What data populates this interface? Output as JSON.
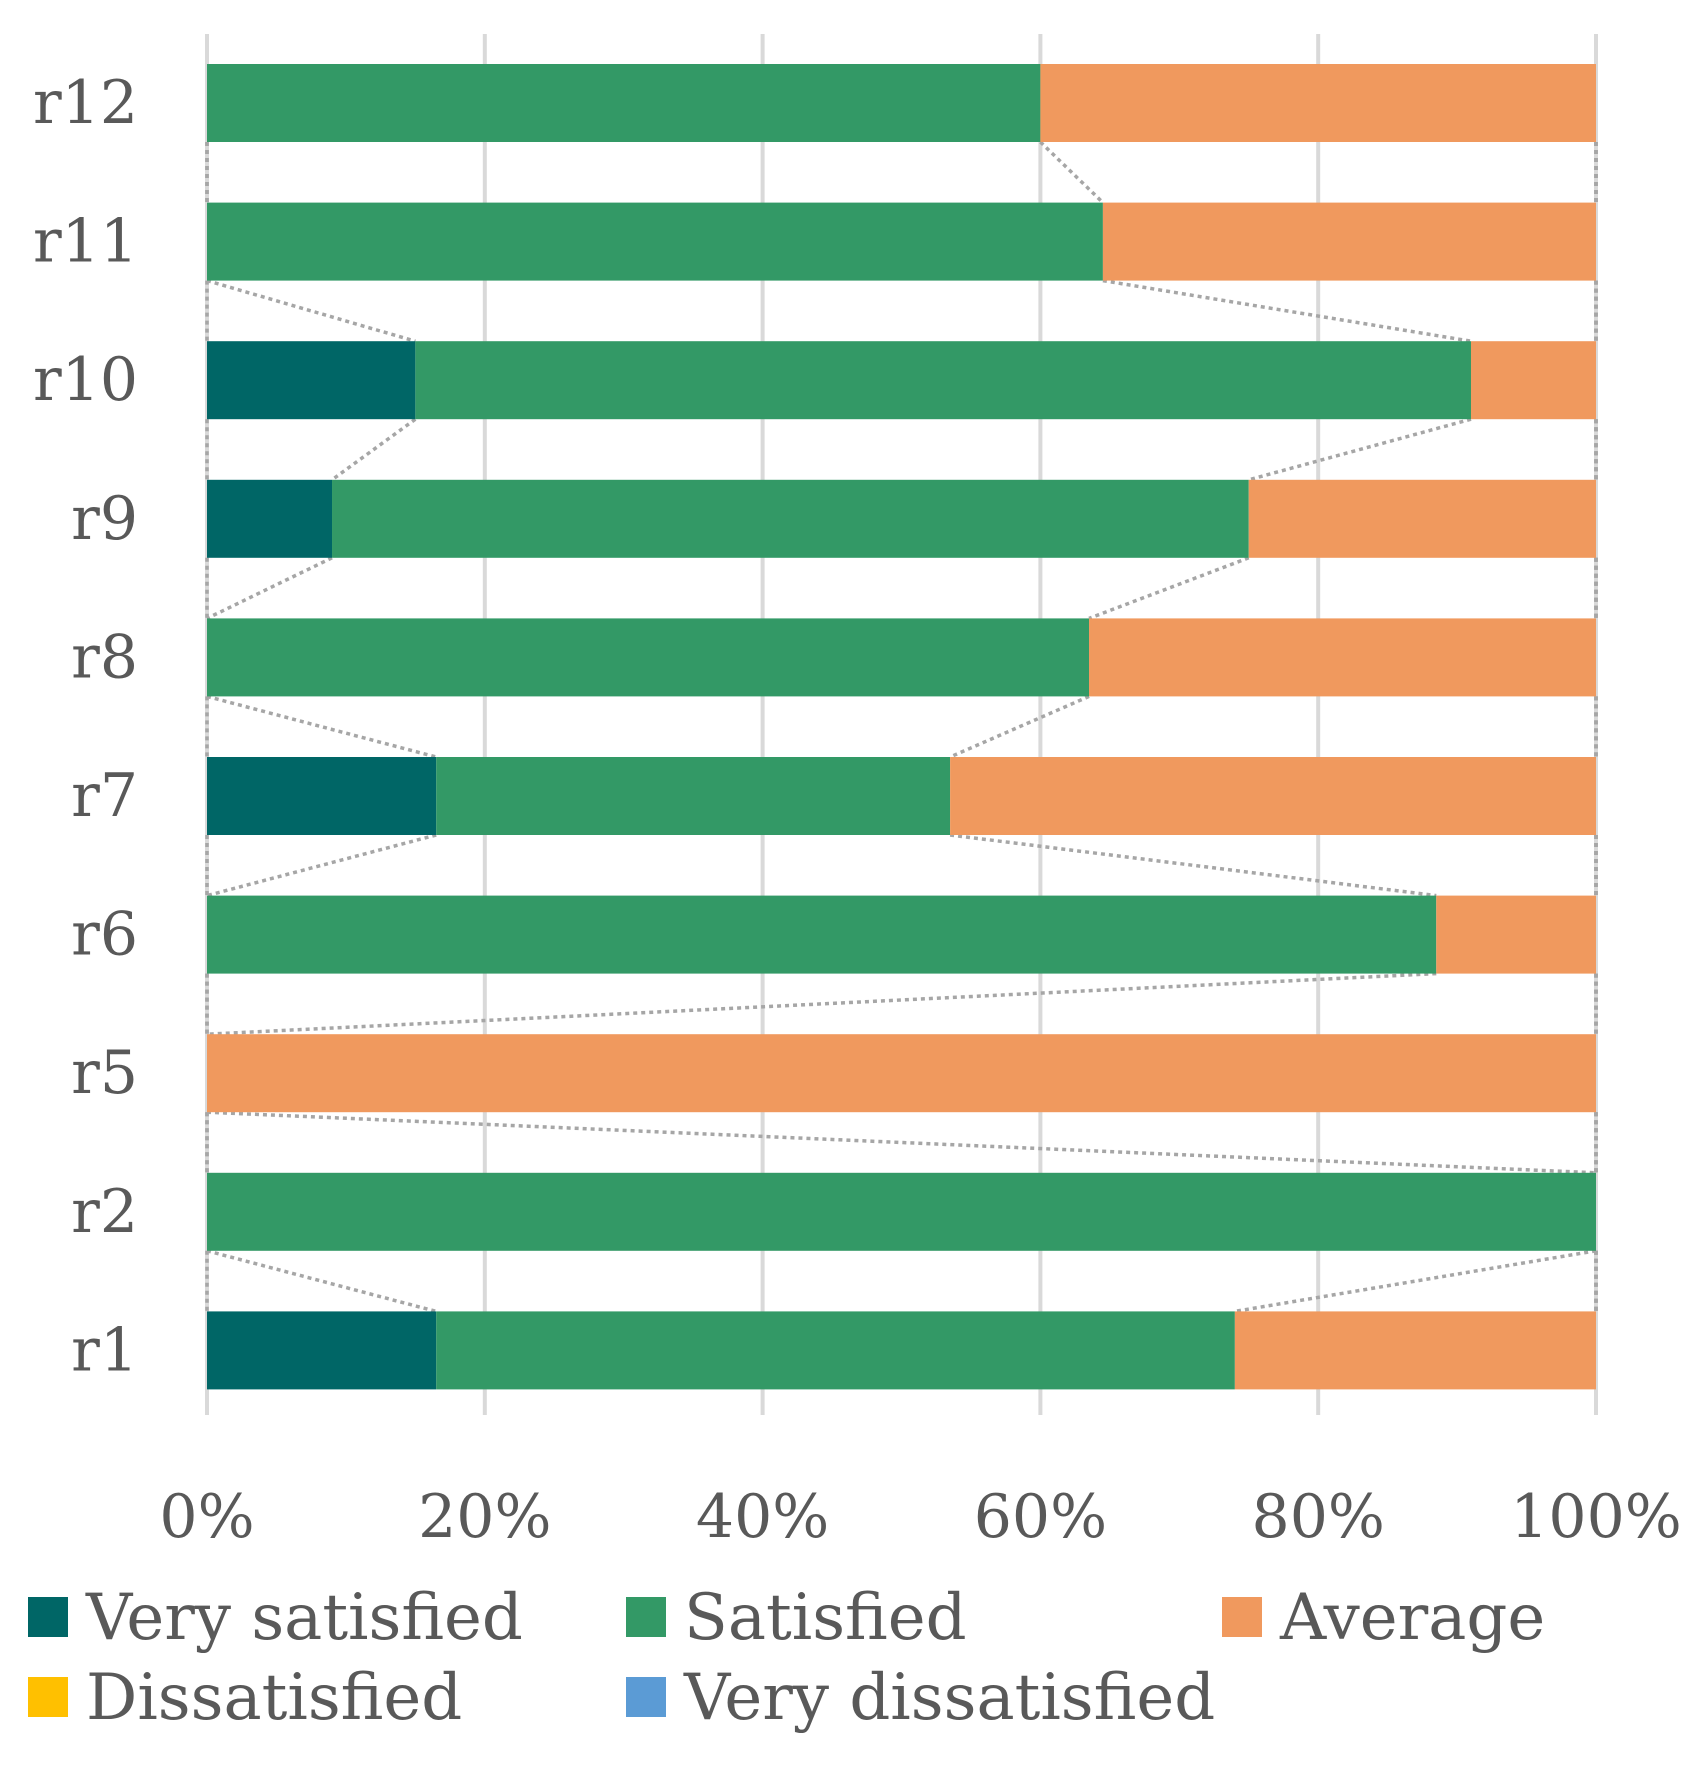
{
  "chart_data": {
    "type": "bar",
    "orientation": "horizontal",
    "stacked": "percent",
    "categories": [
      "r12",
      "r11",
      "r10",
      "r9",
      "r8",
      "r7",
      "r6",
      "r5",
      "r2",
      "r1"
    ],
    "series": [
      {
        "name": "Very satisfied",
        "color": "#006666",
        "values": [
          0,
          0,
          15,
          9,
          0,
          16.5,
          0,
          0,
          0,
          16.5
        ]
      },
      {
        "name": "Satisfied",
        "color": "#339966",
        "values": [
          60,
          64.5,
          76,
          66,
          63.5,
          37,
          88.5,
          0,
          100,
          57.5
        ]
      },
      {
        "name": "Average",
        "color": "#F0995E",
        "values": [
          40,
          35.5,
          9,
          25,
          36.5,
          46.5,
          11.5,
          100,
          0,
          26
        ]
      },
      {
        "name": "Dissatisfied",
        "color": "#FFC000",
        "values": [
          0,
          0,
          0,
          0,
          0,
          0,
          0,
          0,
          0,
          0
        ]
      },
      {
        "name": "Very dissatisfied",
        "color": "#5B9BD5",
        "values": [
          0,
          0,
          0,
          0,
          0,
          0,
          0,
          0,
          0,
          0
        ]
      }
    ],
    "xlim": [
      0,
      100
    ],
    "x_ticks": [
      "0%",
      "20%",
      "40%",
      "60%",
      "80%",
      "100%"
    ],
    "grid": "vertical",
    "series_lines": true,
    "legend_position": "bottom",
    "title": "",
    "xlabel": "",
    "ylabel": ""
  }
}
